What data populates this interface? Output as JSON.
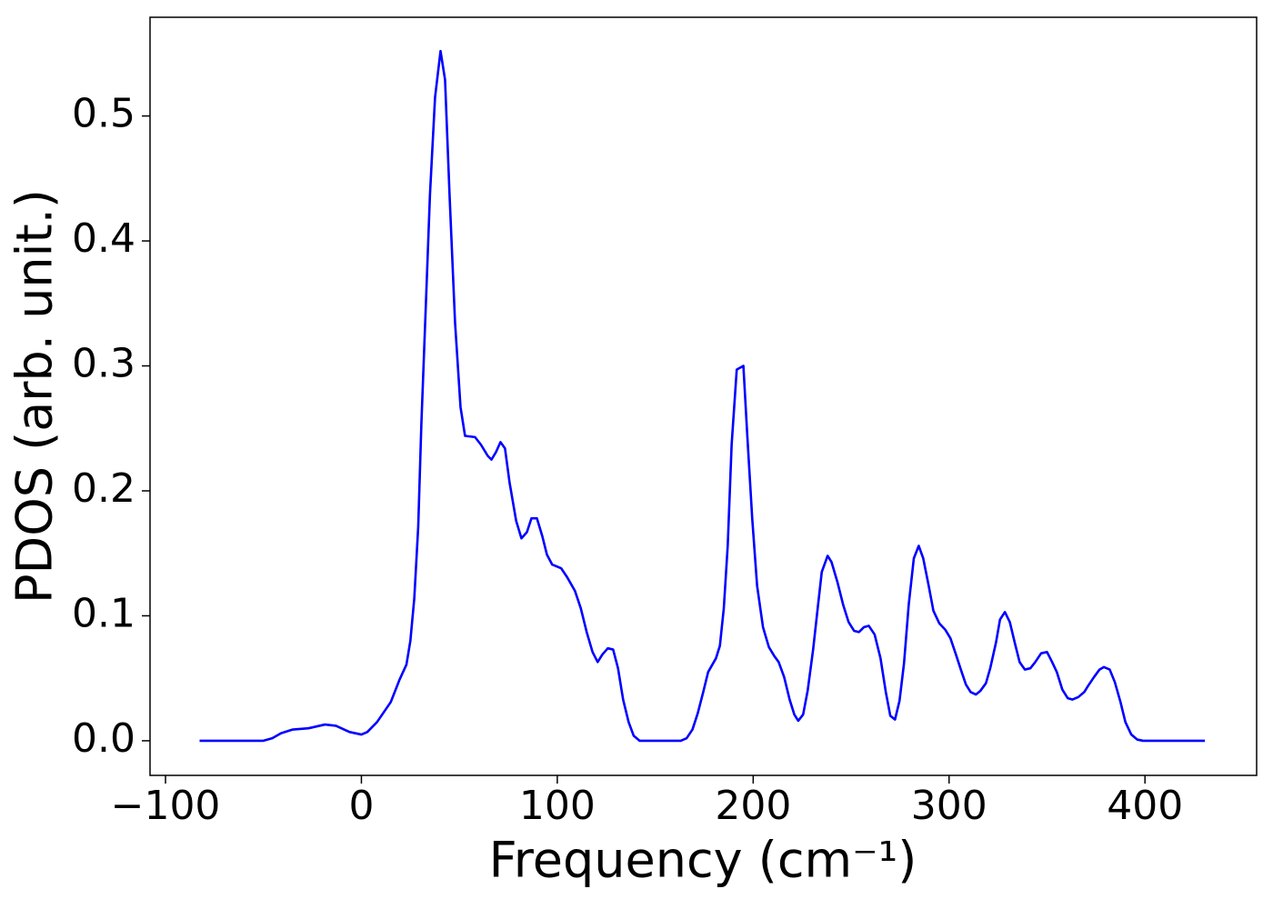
{
  "chart_data": {
    "type": "line",
    "xlabel": "Frequency (cm⁻¹)",
    "ylabel": "PDOS (arb. unit.)",
    "color": "#0000ff",
    "xlim": [
      -107.9,
      457
    ],
    "ylim": [
      -0.0277,
      0.579
    ],
    "xticks": [
      {
        "value": -100,
        "label": "−100"
      },
      0,
      100,
      200,
      300,
      400
    ],
    "yticks": [
      {
        "value": 0,
        "label": "0.0"
      },
      0.1,
      0.2,
      0.3,
      0.4,
      0.5
    ],
    "grid": false,
    "x": [
      -82.6,
      -50,
      -45.5,
      -41,
      -35,
      -27,
      -18.6,
      -13,
      -6,
      0,
      3,
      8,
      15,
      19.5,
      23,
      25,
      27,
      29,
      30.6,
      33,
      35,
      37.6,
      40.4,
      42.7,
      45,
      47.8,
      50.6,
      52.9,
      58,
      61,
      64.5,
      66.4,
      68.7,
      71,
      73.3,
      75.6,
      79,
      81.7,
      84.5,
      86.8,
      89.6,
      92.3,
      94.7,
      97.4,
      102,
      105,
      109,
      112,
      115,
      118,
      120.6,
      123,
      125.8,
      128.5,
      131,
      133.6,
      136.4,
      139,
      142,
      163,
      166,
      169,
      171.7,
      174.5,
      177,
      181,
      183,
      185,
      187,
      189,
      191.6,
      195,
      197,
      199.5,
      202,
      205,
      208,
      210.7,
      213,
      215.8,
      218.6,
      221,
      223,
      225.5,
      227.8,
      230.6,
      233,
      235,
      238,
      240,
      243,
      245.9,
      248.7,
      251.5,
      254,
      256.6,
      259,
      262,
      265,
      267.7,
      270,
      272.4,
      274.7,
      277,
      279.4,
      282,
      284.5,
      286.8,
      289.6,
      292,
      295,
      298,
      300.7,
      303.5,
      306,
      308.6,
      311,
      313.7,
      316,
      318.8,
      321,
      324,
      326,
      328.5,
      331,
      333.6,
      336,
      338.7,
      341.5,
      344,
      347,
      350,
      352.6,
      355,
      357.8,
      360.6,
      363,
      366,
      369,
      371,
      374,
      376.8,
      379,
      382,
      384.6,
      387.5,
      390,
      393,
      396,
      399,
      430.6
    ],
    "values": [
      0,
      0,
      0.002,
      0.006,
      0.009,
      0.01,
      0.013,
      0.012,
      0.007,
      0.005,
      0.007,
      0.015,
      0.031,
      0.049,
      0.061,
      0.08,
      0.114,
      0.171,
      0.253,
      0.353,
      0.437,
      0.515,
      0.552,
      0.529,
      0.437,
      0.335,
      0.267,
      0.244,
      0.243,
      0.237,
      0.228,
      0.225,
      0.231,
      0.239,
      0.234,
      0.207,
      0.176,
      0.162,
      0.167,
      0.178,
      0.178,
      0.164,
      0.149,
      0.141,
      0.138,
      0.131,
      0.12,
      0.106,
      0.087,
      0.071,
      0.063,
      0.069,
      0.074,
      0.073,
      0.058,
      0.033,
      0.015,
      0.004,
      0,
      0,
      0.002,
      0.009,
      0.022,
      0.039,
      0.055,
      0.066,
      0.076,
      0.106,
      0.156,
      0.237,
      0.297,
      0.3,
      0.244,
      0.178,
      0.124,
      0.091,
      0.075,
      0.068,
      0.063,
      0.051,
      0.033,
      0.021,
      0.016,
      0.021,
      0.04,
      0.073,
      0.107,
      0.135,
      0.148,
      0.143,
      0.127,
      0.109,
      0.095,
      0.088,
      0.087,
      0.091,
      0.092,
      0.085,
      0.066,
      0.039,
      0.02,
      0.017,
      0.032,
      0.062,
      0.109,
      0.146,
      0.156,
      0.146,
      0.124,
      0.104,
      0.094,
      0.089,
      0.082,
      0.069,
      0.057,
      0.045,
      0.039,
      0.037,
      0.04,
      0.046,
      0.058,
      0.079,
      0.097,
      0.103,
      0.095,
      0.078,
      0.063,
      0.057,
      0.058,
      0.063,
      0.07,
      0.071,
      0.063,
      0.055,
      0.041,
      0.034,
      0.033,
      0.035,
      0.039,
      0.044,
      0.051,
      0.057,
      0.059,
      0.057,
      0.047,
      0.031,
      0.015,
      0.005,
      0.001,
      0,
      0
    ]
  }
}
